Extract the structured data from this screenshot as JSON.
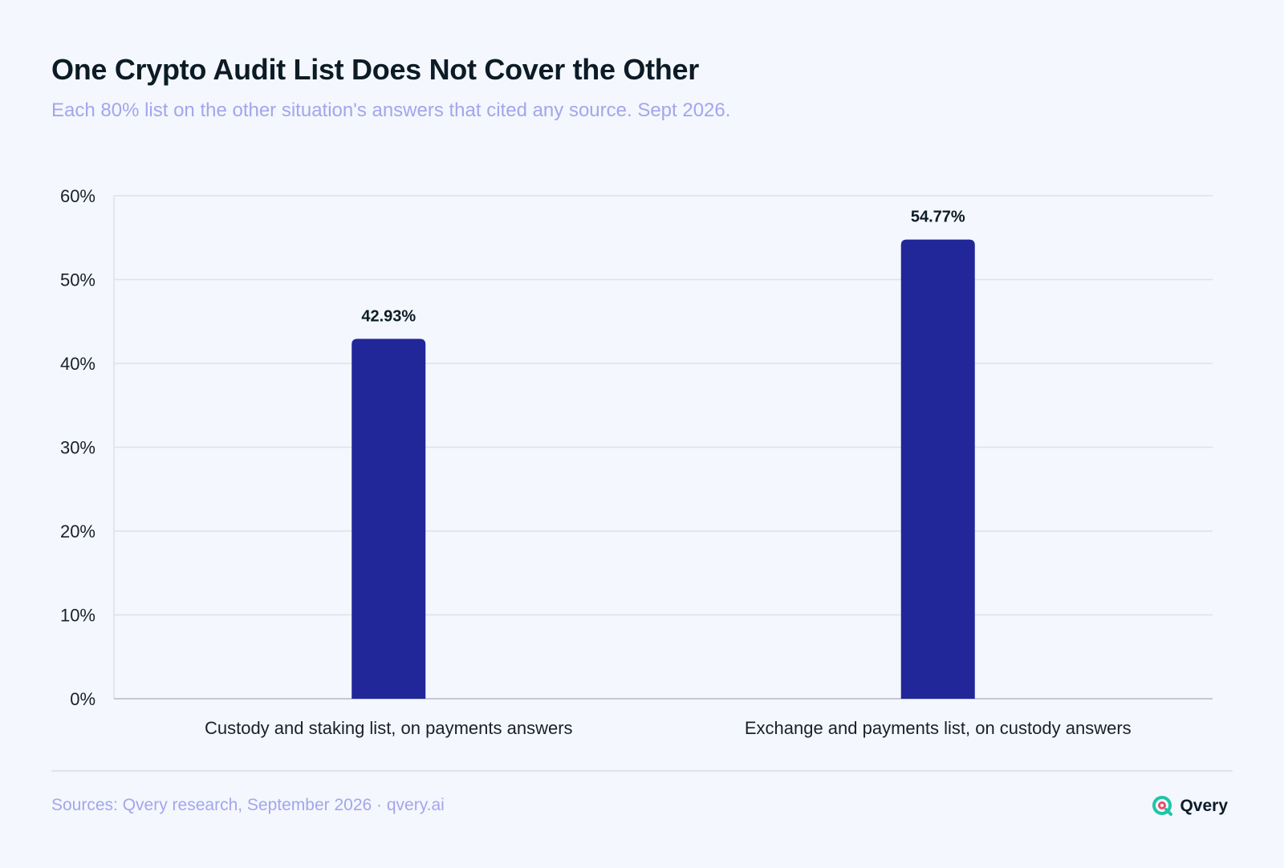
{
  "header": {
    "title": "One Crypto Audit List Does Not Cover the Other",
    "subtitle": "Each 80% list on the other situation's answers that cited any source. Sept 2026."
  },
  "footer": {
    "source": "Sources: Qvery research, September 2026 · qvery.ai",
    "brand": "Qvery",
    "logo_icon": "qvery-logo-icon"
  },
  "colors": {
    "bar": "#212699",
    "grid": "#dde1ee",
    "axis_text": "#1a1f29",
    "label_text": "#0c1b26"
  },
  "chart_data": {
    "type": "bar",
    "categories": [
      "Custody and staking list, on payments answers",
      "Exchange and payments list, on custody answers"
    ],
    "values": [
      42.93,
      54.77
    ],
    "value_labels": [
      "42.93%",
      "54.77%"
    ],
    "ylim": [
      0,
      60
    ],
    "yticks": [
      0,
      10,
      20,
      30,
      40,
      50,
      60
    ],
    "ytick_labels": [
      "0%",
      "10%",
      "20%",
      "30%",
      "40%",
      "50%",
      "60%"
    ],
    "grid": true,
    "legend": "none"
  }
}
